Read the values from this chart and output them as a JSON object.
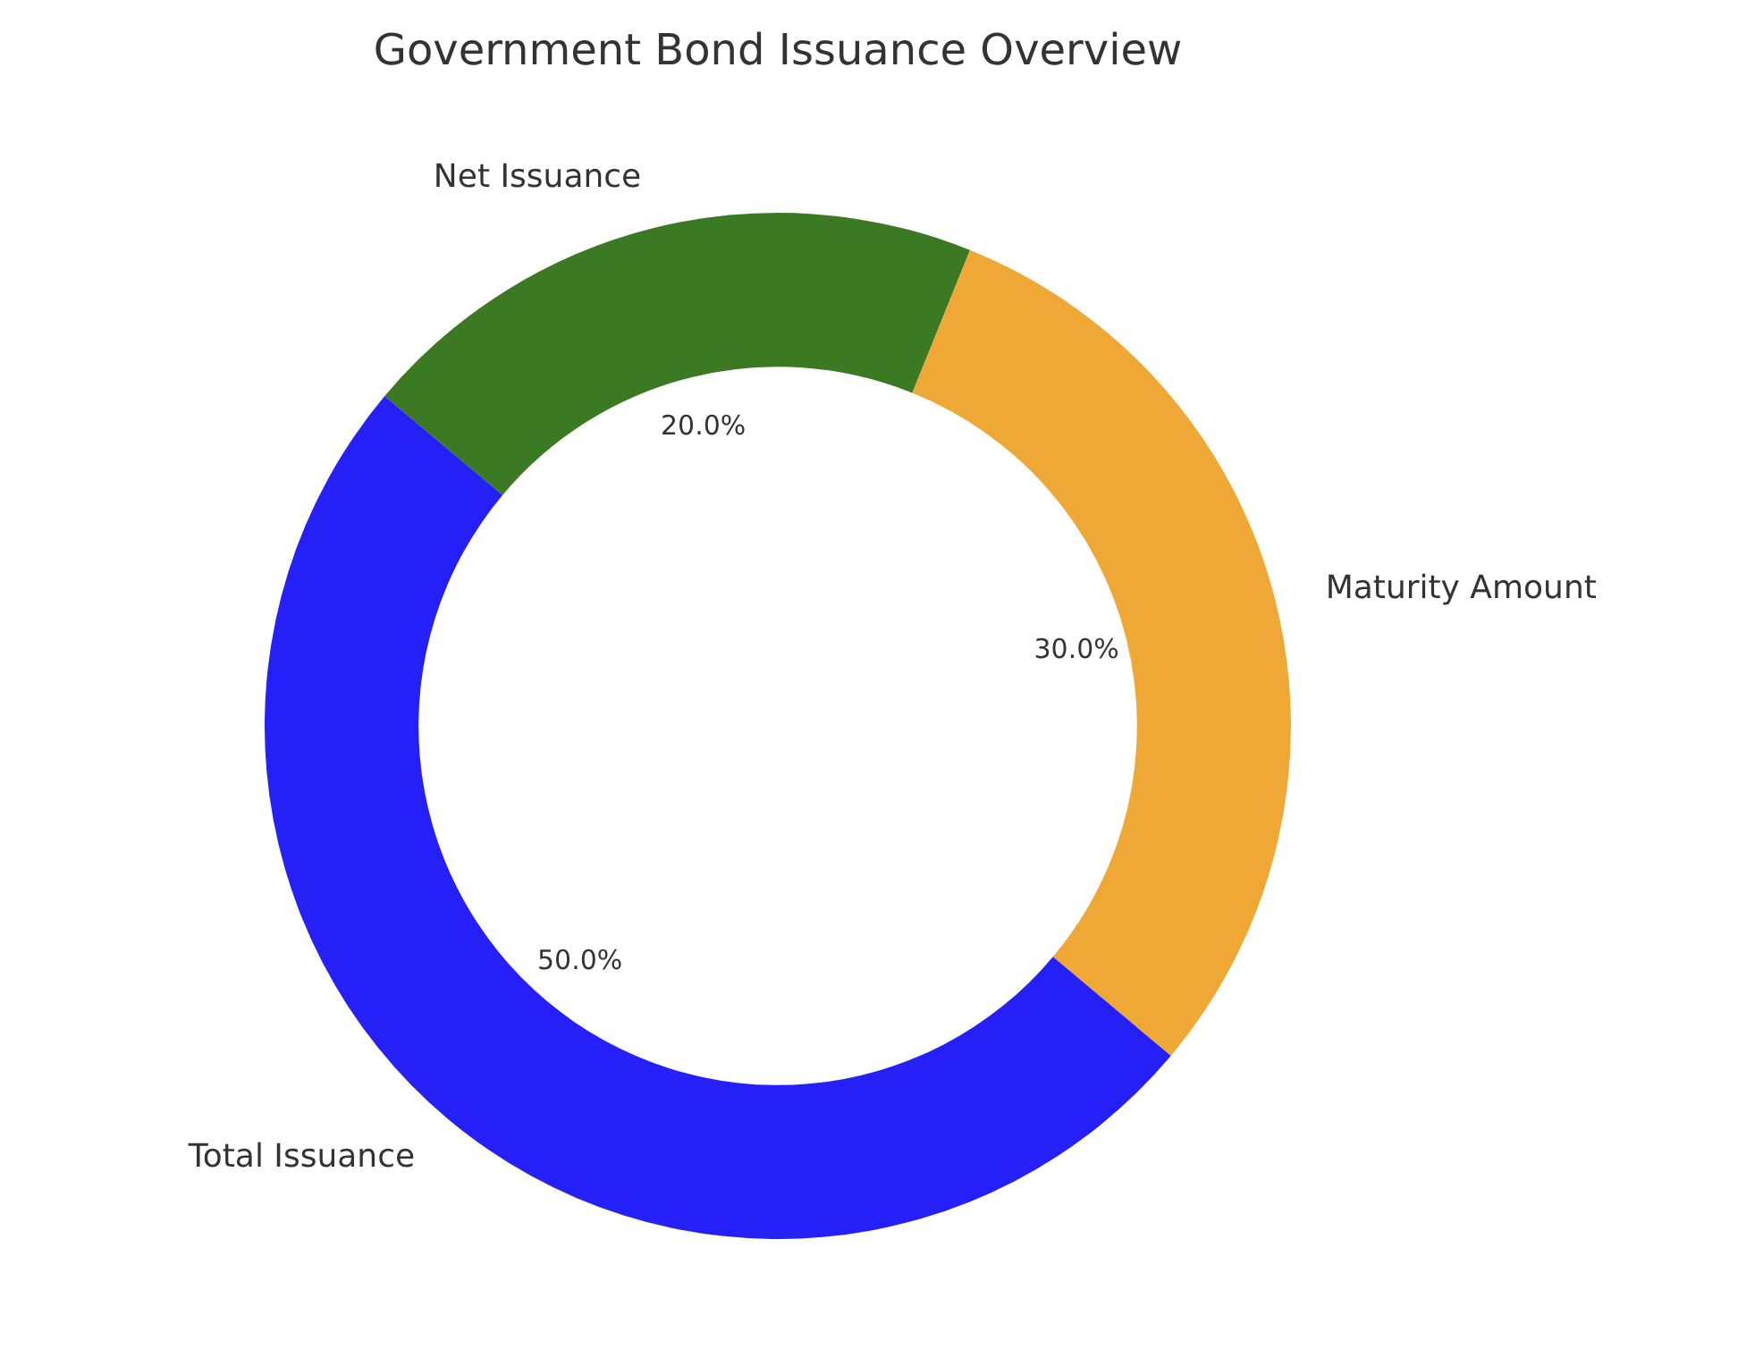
{
  "chart_data": {
    "type": "donut",
    "title": "Government Bond Issuance Overview",
    "categories": [
      "Net Issuance",
      "Maturity Amount",
      "Total Issuance"
    ],
    "values": [
      20,
      30,
      50
    ],
    "colors": [
      "#3b7a22",
      "#efa836",
      "#2620f8"
    ],
    "value_labels": [
      "20.0%",
      "30.0%",
      "50.0%"
    ]
  }
}
